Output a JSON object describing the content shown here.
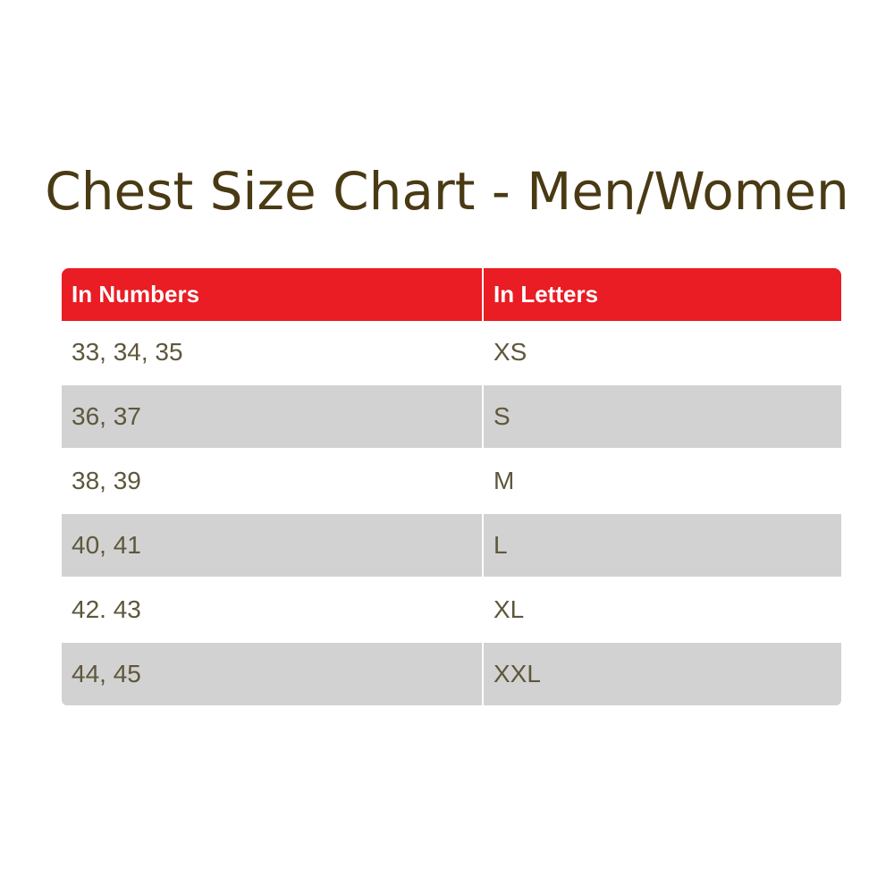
{
  "title": "Chest Size Chart - Men/Women",
  "colors": {
    "header": "#ea1c24",
    "stripe": "#d2d2d2",
    "text": "#5e573c",
    "title": "#4a3a14"
  },
  "table": {
    "headers": [
      "In Numbers",
      "In Letters"
    ],
    "rows": [
      [
        "33, 34, 35",
        "XS"
      ],
      [
        "36, 37",
        "S"
      ],
      [
        "38, 39",
        "M"
      ],
      [
        "40, 41",
        "L"
      ],
      [
        "42. 43",
        "XL"
      ],
      [
        "44, 45",
        "XXL"
      ]
    ]
  }
}
